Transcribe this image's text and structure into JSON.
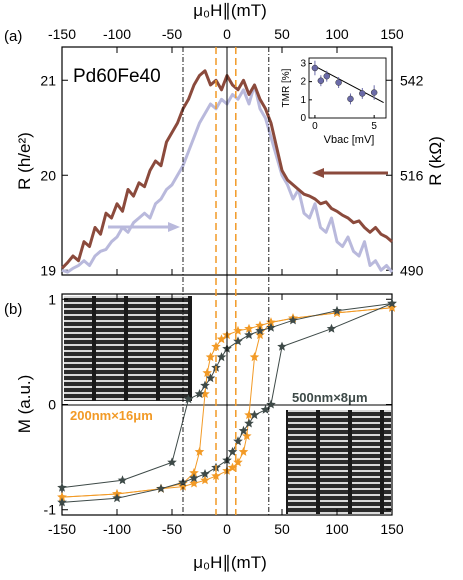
{
  "figure": {
    "top_axis_label": "μ₀H∥(mT)",
    "bottom_axis_label": "μ₀H∥(mT)"
  },
  "chart_data": [
    {
      "panel": "(a)",
      "type": "line",
      "annotation": "Pd60Fe40",
      "ylabel": "R (h/e²)",
      "ylabel_right": "R (kΩ)",
      "xlim": [
        -150,
        150
      ],
      "ylim": [
        18.95,
        21.35
      ],
      "xticks": [
        -150,
        -100,
        -50,
        0,
        50,
        100,
        150
      ],
      "yticks": [
        19,
        20,
        21
      ],
      "yticks_right": [
        "490",
        "516",
        "542"
      ],
      "grid": false,
      "colors": {
        "sweep_up": "#8b4a3c",
        "sweep_down": "#b9b9dc"
      },
      "series": [
        {
          "x": [
            -150,
            -145,
            -140,
            -135,
            -130,
            -125,
            -120,
            -115,
            -110,
            -105,
            -100,
            -95,
            -90,
            -85,
            -80,
            -75,
            -70,
            -65,
            -60,
            -55,
            -50,
            -45,
            -40,
            -35,
            -30,
            -25,
            -20,
            -15,
            -10,
            -5,
            0,
            5,
            10,
            15,
            20,
            25,
            30,
            35,
            40,
            45,
            50,
            55,
            60,
            65,
            70,
            75,
            80,
            85,
            90,
            95,
            100,
            105,
            110,
            115,
            120,
            125,
            130,
            135,
            140,
            145,
            150
          ],
          "y": [
            19.02,
            19.08,
            19.15,
            19.1,
            19.3,
            19.25,
            19.45,
            19.38,
            19.6,
            19.55,
            19.7,
            19.62,
            19.85,
            19.78,
            19.92,
            19.88,
            20.05,
            20.15,
            20.1,
            20.35,
            20.45,
            20.55,
            20.7,
            20.8,
            20.95,
            21.05,
            21.1,
            20.95,
            21.0,
            20.9,
            21.05,
            20.95,
            20.9,
            21.0,
            20.85,
            20.95,
            20.8,
            20.7,
            20.55,
            20.3,
            20.05,
            19.95,
            19.9,
            19.85,
            19.8,
            19.78,
            19.75,
            19.7,
            19.72,
            19.65,
            19.62,
            19.58,
            19.55,
            19.5,
            19.52,
            19.45,
            19.4,
            19.45,
            19.38,
            19.35,
            19.3
          ]
        },
        {
          "x": [
            -150,
            -145,
            -140,
            -135,
            -130,
            -125,
            -120,
            -115,
            -110,
            -105,
            -100,
            -95,
            -90,
            -85,
            -80,
            -75,
            -70,
            -65,
            -60,
            -55,
            -50,
            -45,
            -40,
            -35,
            -30,
            -25,
            -20,
            -15,
            -10,
            -5,
            0,
            5,
            10,
            15,
            20,
            25,
            30,
            35,
            40,
            45,
            50,
            55,
            60,
            65,
            70,
            75,
            80,
            85,
            90,
            95,
            100,
            105,
            110,
            115,
            120,
            125,
            130,
            135,
            140,
            145,
            150
          ],
          "y": [
            19.0,
            18.98,
            19.02,
            19.05,
            19.1,
            19.05,
            19.15,
            19.2,
            19.22,
            19.3,
            19.35,
            19.45,
            19.4,
            19.5,
            19.55,
            19.6,
            19.55,
            19.7,
            19.75,
            19.85,
            19.9,
            20.0,
            20.1,
            20.25,
            20.4,
            20.55,
            20.65,
            20.75,
            20.7,
            20.8,
            20.75,
            20.85,
            20.8,
            20.9,
            20.75,
            20.95,
            20.7,
            20.6,
            20.4,
            20.2,
            20.0,
            19.9,
            19.75,
            19.85,
            19.6,
            19.55,
            19.7,
            19.45,
            19.4,
            19.55,
            19.3,
            19.25,
            19.35,
            19.2,
            19.15,
            19.3,
            19.05,
            19.1,
            19.0,
            19.05,
            18.98
          ]
        }
      ],
      "inset": {
        "ylabel": "TMR [%]",
        "xlabel": "Vbac [mV]",
        "xticks": [
          0,
          5
        ],
        "yticks": [
          0,
          1,
          2,
          3
        ],
        "xlim": [
          -0.5,
          6
        ],
        "ylim": [
          0,
          3.3
        ],
        "points": [
          {
            "x": 0,
            "y": 2.75,
            "err": 0.4
          },
          {
            "x": 0.5,
            "y": 2.05,
            "err": 0.3
          },
          {
            "x": 1.0,
            "y": 2.3,
            "err": 0.3
          },
          {
            "x": 2.0,
            "y": 1.95,
            "err": 0.3
          },
          {
            "x": 3.0,
            "y": 1.05,
            "err": 0.3
          },
          {
            "x": 4.0,
            "y": 1.35,
            "err": 0.3
          },
          {
            "x": 5.0,
            "y": 1.4,
            "err": 0.4
          }
        ],
        "fit": {
          "x": [
            0,
            5.8
          ],
          "y": [
            2.85,
            0.85
          ]
        }
      }
    },
    {
      "panel": "(b)",
      "type": "line",
      "ylabel": "M (a.u.)",
      "xlim": [
        -150,
        150
      ],
      "ylim": [
        -1.05,
        1.05
      ],
      "xticks": [
        -150,
        -100,
        -50,
        0,
        50,
        100,
        150
      ],
      "yticks": [
        -1,
        0,
        1
      ],
      "grid": false,
      "colors": {
        "narrow": "#f29a26",
        "wide": "#3e4a48"
      },
      "series": [
        {
          "name": "200nm×16μm",
          "x": [
            -150,
            -100,
            -60,
            -40,
            -30,
            -25,
            -20,
            -18,
            -15,
            -10,
            -5,
            0,
            10,
            20,
            30,
            40,
            60,
            100,
            150
          ],
          "y": [
            -0.88,
            -0.85,
            -0.8,
            -0.75,
            -0.65,
            -0.45,
            0.1,
            0.3,
            0.45,
            0.55,
            0.62,
            0.66,
            0.7,
            0.72,
            0.75,
            0.78,
            0.82,
            0.87,
            0.92
          ]
        },
        {
          "name": "200nm×16μm",
          "x": [
            150,
            100,
            60,
            40,
            30,
            25,
            20,
            18,
            15,
            10,
            5,
            0,
            -10,
            -20,
            -30,
            -40,
            -60,
            -100,
            -150
          ],
          "y": [
            0.92,
            0.87,
            0.82,
            0.78,
            0.66,
            0.45,
            -0.1,
            -0.3,
            -0.45,
            -0.55,
            -0.6,
            -0.63,
            -0.68,
            -0.72,
            -0.75,
            -0.78,
            -0.8,
            -0.85,
            -0.88
          ]
        },
        {
          "name": "500nm×8μm",
          "x": [
            -150,
            -95,
            -50,
            -35,
            -25,
            -20,
            -15,
            -10,
            -5,
            0,
            10,
            20,
            30,
            40,
            60,
            100,
            150
          ],
          "y": [
            -0.79,
            -0.72,
            -0.55,
            0.05,
            0.1,
            0.18,
            0.25,
            0.35,
            0.45,
            0.53,
            0.6,
            0.66,
            0.7,
            0.73,
            0.8,
            0.89,
            0.96
          ]
        },
        {
          "name": "500nm×8μm",
          "x": [
            150,
            95,
            50,
            40,
            35,
            25,
            20,
            15,
            10,
            5,
            0,
            -10,
            -20,
            -30,
            -40,
            -60,
            -100,
            -150
          ],
          "y": [
            0.96,
            0.72,
            0.55,
            0.0,
            -0.05,
            -0.1,
            -0.18,
            -0.25,
            -0.35,
            -0.45,
            -0.53,
            -0.6,
            -0.66,
            -0.7,
            -0.74,
            -0.8,
            -0.89,
            -0.93
          ]
        }
      ]
    }
  ]
}
